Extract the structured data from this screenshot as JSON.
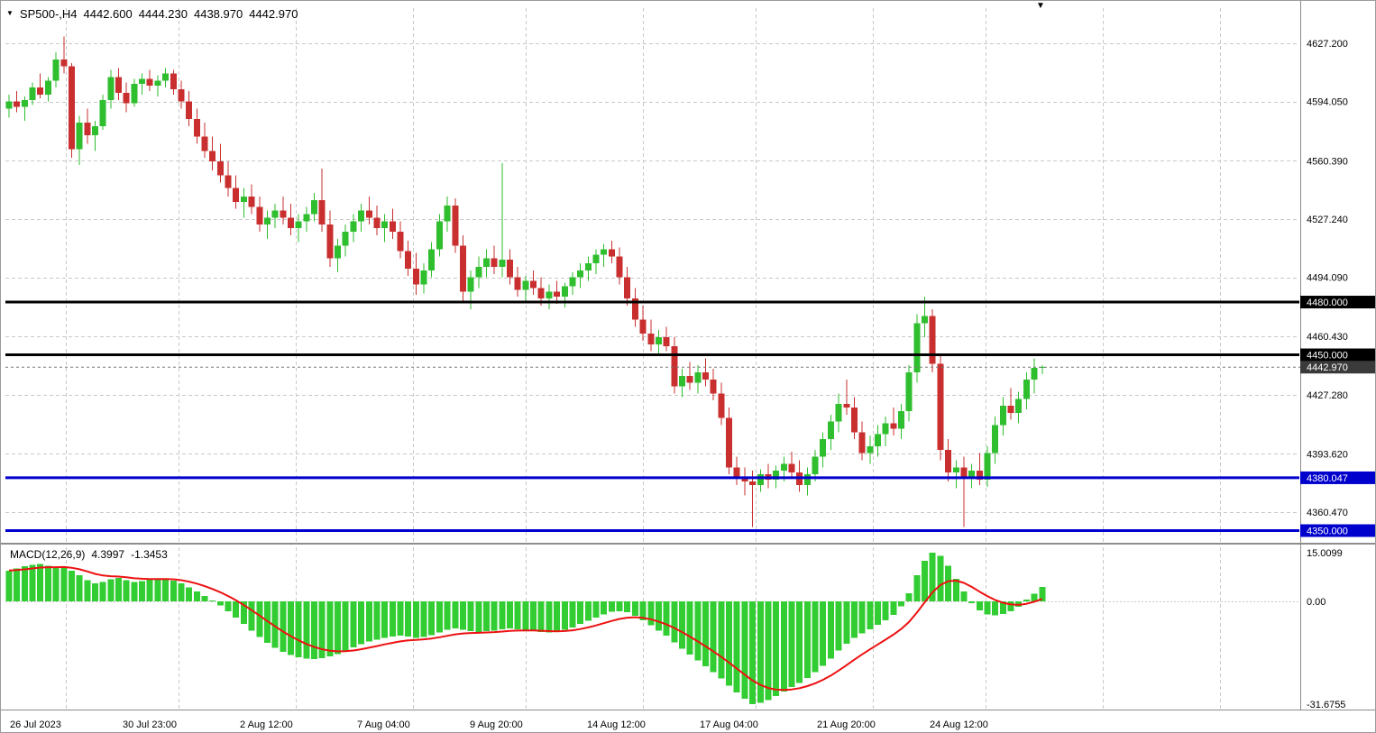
{
  "quote": {
    "symbol": "SP500-,H4",
    "open": "4442.600",
    "high": "4444.230",
    "low": "4438.970",
    "close": "4442.970"
  },
  "icons": {
    "dropdown": "▼",
    "shift_marker": "▼"
  },
  "macd_panel": {
    "title": "MACD(12,26,9)",
    "value": "4.3997",
    "signal": "-1.3453",
    "scale": [
      "15.0099",
      "0.00",
      "-31.6755"
    ]
  },
  "price_axis": [
    "4627.200",
    "4594.050",
    "4560.390",
    "4527.240",
    "4494.090",
    "4460.430",
    "4427.280",
    "4393.620",
    "4360.470"
  ],
  "time_axis": [
    "26 Jul 2023",
    "30 Jul 23:00",
    "2 Aug 12:00",
    "7 Aug 04:00",
    "9 Aug 20:00",
    "14 Aug 12:00",
    "17 Aug 04:00",
    "21 Aug 20:00",
    "24 Aug 12:00"
  ],
  "colors": {
    "background": "#FFFFFF",
    "bull": "#2EBE2E",
    "bear": "#CA2F2F",
    "macd_histogram": "#32CD32",
    "macd_signal": "#EE1111",
    "grid": "#C9C9C9",
    "border": "#8C8C8C",
    "level_black": "#000000",
    "level_blue": "#0000CD",
    "current_tag_bg": "#3A3A3A",
    "tag_text": "#FFFFFF",
    "text": "#000000"
  },
  "chart_data": {
    "type": "candlestick",
    "symbol": "SP500-,H4",
    "timeframe": "H4",
    "price_range": [
      4343.6,
      4647.2
    ],
    "grid": true,
    "candles": [
      [
        4590,
        4598,
        4585,
        4594
      ],
      [
        4594,
        4600,
        4588,
        4591
      ],
      [
        4591,
        4597,
        4583,
        4595
      ],
      [
        4595,
        4605,
        4592,
        4602
      ],
      [
        4602,
        4610,
        4596,
        4598
      ],
      [
        4598,
        4608,
        4594,
        4606
      ],
      [
        4606,
        4622,
        4602,
        4618
      ],
      [
        4618,
        4631,
        4610,
        4614
      ],
      [
        4614,
        4616,
        4562,
        4567
      ],
      [
        4567,
        4586,
        4558,
        4582
      ],
      [
        4582,
        4590,
        4570,
        4575
      ],
      [
        4575,
        4583,
        4566,
        4580
      ],
      [
        4580,
        4598,
        4578,
        4595
      ],
      [
        4595,
        4612,
        4590,
        4608
      ],
      [
        4608,
        4613,
        4595,
        4599
      ],
      [
        4599,
        4605,
        4588,
        4593
      ],
      [
        4593,
        4607,
        4591,
        4604
      ],
      [
        4604,
        4610,
        4598,
        4607
      ],
      [
        4607,
        4612,
        4600,
        4603
      ],
      [
        4603,
        4609,
        4597,
        4606
      ],
      [
        4606,
        4613,
        4602,
        4610
      ],
      [
        4610,
        4612,
        4598,
        4601
      ],
      [
        4601,
        4606,
        4590,
        4594
      ],
      [
        4594,
        4600,
        4580,
        4584
      ],
      [
        4584,
        4590,
        4570,
        4574
      ],
      [
        4574,
        4582,
        4562,
        4566
      ],
      [
        4566,
        4574,
        4555,
        4560
      ],
      [
        4560,
        4570,
        4548,
        4552
      ],
      [
        4552,
        4560,
        4540,
        4545
      ],
      [
        4545,
        4552,
        4533,
        4537
      ],
      [
        4537,
        4545,
        4528,
        4540
      ],
      [
        4540,
        4547,
        4530,
        4534
      ],
      [
        4534,
        4540,
        4520,
        4524
      ],
      [
        4524,
        4532,
        4516,
        4528
      ],
      [
        4528,
        4536,
        4522,
        4532
      ],
      [
        4532,
        4540,
        4524,
        4528
      ],
      [
        4528,
        4536,
        4518,
        4522
      ],
      [
        4522,
        4530,
        4514,
        4526
      ],
      [
        4526,
        4534,
        4520,
        4530
      ],
      [
        4530,
        4542,
        4526,
        4538
      ],
      [
        4538,
        4556,
        4520,
        4524
      ],
      [
        4524,
        4532,
        4500,
        4505
      ],
      [
        4505,
        4516,
        4497,
        4512
      ],
      [
        4512,
        4524,
        4506,
        4520
      ],
      [
        4520,
        4530,
        4514,
        4526
      ],
      [
        4526,
        4536,
        4520,
        4532
      ],
      [
        4532,
        4540,
        4524,
        4528
      ],
      [
        4528,
        4535,
        4518,
        4522
      ],
      [
        4522,
        4530,
        4514,
        4526
      ],
      [
        4526,
        4533,
        4516,
        4520
      ],
      [
        4520,
        4526,
        4505,
        4509
      ],
      [
        4509,
        4515,
        4495,
        4499
      ],
      [
        4499,
        4508,
        4484,
        4490
      ],
      [
        4490,
        4502,
        4485,
        4498
      ],
      [
        4498,
        4514,
        4494,
        4510
      ],
      [
        4510,
        4530,
        4506,
        4526
      ],
      [
        4526,
        4540,
        4520,
        4535
      ],
      [
        4535,
        4539,
        4508,
        4512
      ],
      [
        4512,
        4518,
        4480,
        4486
      ],
      [
        4486,
        4498,
        4476,
        4494
      ],
      [
        4494,
        4506,
        4488,
        4500
      ],
      [
        4500,
        4510,
        4494,
        4505
      ],
      [
        4505,
        4512,
        4496,
        4500
      ],
      [
        4500,
        4559,
        4494,
        4504
      ],
      [
        4504,
        4510,
        4490,
        4494
      ],
      [
        4494,
        4500,
        4483,
        4487
      ],
      [
        4487,
        4495,
        4480,
        4492
      ],
      [
        4492,
        4498,
        4484,
        4488
      ],
      [
        4488,
        4494,
        4478,
        4482
      ],
      [
        4482,
        4490,
        4476,
        4486
      ],
      [
        4486,
        4492,
        4479,
        4483
      ],
      [
        4483,
        4491,
        4477,
        4489
      ],
      [
        4489,
        4497,
        4484,
        4494
      ],
      [
        4494,
        4502,
        4488,
        4498
      ],
      [
        4498,
        4506,
        4492,
        4502
      ],
      [
        4502,
        4510,
        4496,
        4507
      ],
      [
        4507,
        4513,
        4500,
        4510
      ],
      [
        4510,
        4515,
        4502,
        4506
      ],
      [
        4506,
        4511,
        4490,
        4494
      ],
      [
        4494,
        4500,
        4478,
        4482
      ],
      [
        4482,
        4488,
        4466,
        4470
      ],
      [
        4470,
        4478,
        4458,
        4462
      ],
      [
        4462,
        4470,
        4452,
        4456
      ],
      [
        4456,
        4464,
        4450,
        4460
      ],
      [
        4460,
        4466,
        4452,
        4455
      ],
      [
        4455,
        4460,
        4428,
        4432
      ],
      [
        4432,
        4442,
        4426,
        4438
      ],
      [
        4438,
        4446,
        4430,
        4434
      ],
      [
        4434,
        4444,
        4428,
        4440
      ],
      [
        4440,
        4448,
        4432,
        4436
      ],
      [
        4436,
        4442,
        4424,
        4428
      ],
      [
        4428,
        4434,
        4410,
        4414
      ],
      [
        4414,
        4420,
        4382,
        4386
      ],
      [
        4386,
        4392,
        4376,
        4380
      ],
      [
        4380,
        4386,
        4370,
        4378
      ],
      [
        4378,
        4384,
        4352,
        4376
      ],
      [
        4376,
        4385,
        4372,
        4382
      ],
      [
        4382,
        4388,
        4374,
        4379
      ],
      [
        4379,
        4387,
        4374,
        4384
      ],
      [
        4384,
        4392,
        4378,
        4388
      ],
      [
        4388,
        4395,
        4380,
        4383
      ],
      [
        4383,
        4390,
        4372,
        4376
      ],
      [
        4376,
        4386,
        4370,
        4382
      ],
      [
        4382,
        4396,
        4378,
        4392
      ],
      [
        4392,
        4406,
        4386,
        4402
      ],
      [
        4402,
        4416,
        4396,
        4412
      ],
      [
        4412,
        4428,
        4406,
        4422
      ],
      [
        4422,
        4436,
        4416,
        4420
      ],
      [
        4420,
        4426,
        4402,
        4406
      ],
      [
        4406,
        4412,
        4390,
        4394
      ],
      [
        4394,
        4404,
        4388,
        4398
      ],
      [
        4398,
        4410,
        4392,
        4405
      ],
      [
        4405,
        4415,
        4398,
        4411
      ],
      [
        4411,
        4420,
        4404,
        4408
      ],
      [
        4408,
        4422,
        4402,
        4418
      ],
      [
        4418,
        4444,
        4412,
        4440
      ],
      [
        4440,
        4473,
        4434,
        4468
      ],
      [
        4468,
        4483,
        4460,
        4472
      ],
      [
        4472,
        4476,
        4440,
        4445
      ],
      [
        4445,
        4450,
        4390,
        4396
      ],
      [
        4396,
        4402,
        4378,
        4383
      ],
      [
        4383,
        4390,
        4374,
        4386
      ],
      [
        4386,
        4392,
        4352,
        4380
      ],
      [
        4380,
        4388,
        4374,
        4384
      ],
      [
        4384,
        4394,
        4376,
        4379
      ],
      [
        4379,
        4398,
        4375,
        4394
      ],
      [
        4394,
        4415,
        4388,
        4410
      ],
      [
        4410,
        4426,
        4404,
        4421
      ],
      [
        4421,
        4431,
        4413,
        4417
      ],
      [
        4417,
        4429,
        4411,
        4425
      ],
      [
        4425,
        4440,
        4419,
        4436
      ],
      [
        4436,
        4448,
        4428,
        4442.6
      ],
      [
        4442.6,
        4444.23,
        4438.97,
        4442.97
      ]
    ],
    "levels": [
      {
        "value": 4480.0,
        "label": "4480.000",
        "color": "#000000"
      },
      {
        "value": 4450.0,
        "label": "4450.000",
        "color": "#000000"
      },
      {
        "value": 4380.047,
        "label": "4380.047",
        "color": "#0000CD"
      },
      {
        "value": 4350.0,
        "label": "4350.000",
        "color": "#0000CD"
      }
    ],
    "current_price": {
      "value": 4442.97,
      "label": "4442.970"
    },
    "macd": {
      "type": "histogram+signal",
      "params": [
        12,
        26,
        9
      ],
      "signal_period": 9,
      "current_value": 4.3997,
      "current_signal": -1.3453,
      "scale_ticks": [
        15.0099,
        0.0,
        -31.6755
      ],
      "values": [
        9.5,
        10.2,
        10.8,
        11.2,
        11.5,
        11.0,
        10.5,
        10.8,
        9.5,
        8.0,
        6.5,
        5.5,
        6.0,
        6.8,
        7.2,
        6.5,
        6.0,
        6.3,
        6.6,
        6.8,
        7.0,
        6.4,
        5.5,
        4.3,
        3.0,
        1.6,
        0.3,
        -1.2,
        -3.0,
        -5.0,
        -7.0,
        -9.0,
        -11.0,
        -12.8,
        -14.3,
        -15.5,
        -16.5,
        -17.2,
        -17.6,
        -17.8,
        -17.5,
        -17.0,
        -16.2,
        -15.2,
        -14.2,
        -13.2,
        -12.4,
        -11.8,
        -11.2,
        -10.8,
        -10.6,
        -10.8,
        -11.2,
        -11.0,
        -10.4,
        -9.6,
        -8.8,
        -8.4,
        -8.8,
        -9.2,
        -9.4,
        -9.2,
        -9.0,
        -8.6,
        -8.4,
        -8.6,
        -8.8,
        -9.0,
        -9.4,
        -9.6,
        -9.4,
        -8.8,
        -8.0,
        -7.0,
        -6.0,
        -5.0,
        -4.0,
        -3.2,
        -3.0,
        -3.4,
        -4.4,
        -5.8,
        -7.4,
        -9.0,
        -10.6,
        -12.6,
        -14.6,
        -16.4,
        -18.2,
        -20.0,
        -21.8,
        -23.8,
        -26.0,
        -28.0,
        -30.0,
        -31.6755,
        -31.2,
        -30.4,
        -29.2,
        -27.8,
        -26.4,
        -25.2,
        -23.6,
        -21.8,
        -19.8,
        -17.6,
        -15.2,
        -13.0,
        -11.2,
        -9.8,
        -8.6,
        -7.2,
        -5.8,
        -4.2,
        -1.5,
        2.5,
        8.0,
        12.5,
        15.0099,
        14.0,
        11.0,
        7.0,
        3.0,
        -0.5,
        -2.8,
        -4.0,
        -4.3,
        -3.9,
        -3.0,
        -1.6,
        0.6,
        2.4,
        4.3997
      ]
    }
  }
}
